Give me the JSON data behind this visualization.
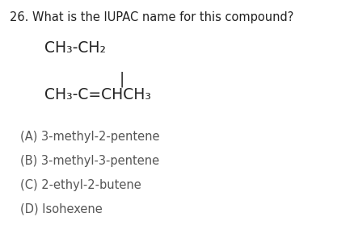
{
  "question": "26. What is the IUPAC name for this compound?",
  "compound_line1": "CH₃-CH₂",
  "compound_pipe": "|",
  "compound_line2": "CH₃-C=CHCH₃",
  "options": [
    "(A) 3-methyl-2-pentene",
    "(B) 3-methyl-3-pentene",
    "(C) 2-ethyl-2-butene",
    "(D) Isohexene"
  ],
  "bg_color": "#ffffff",
  "text_color": "#222222",
  "option_color": "#555555",
  "question_fontsize": 10.5,
  "compound_fontsize": 13.5,
  "option_fontsize": 10.5,
  "fig_width": 4.38,
  "fig_height": 2.95,
  "dpi": 100
}
